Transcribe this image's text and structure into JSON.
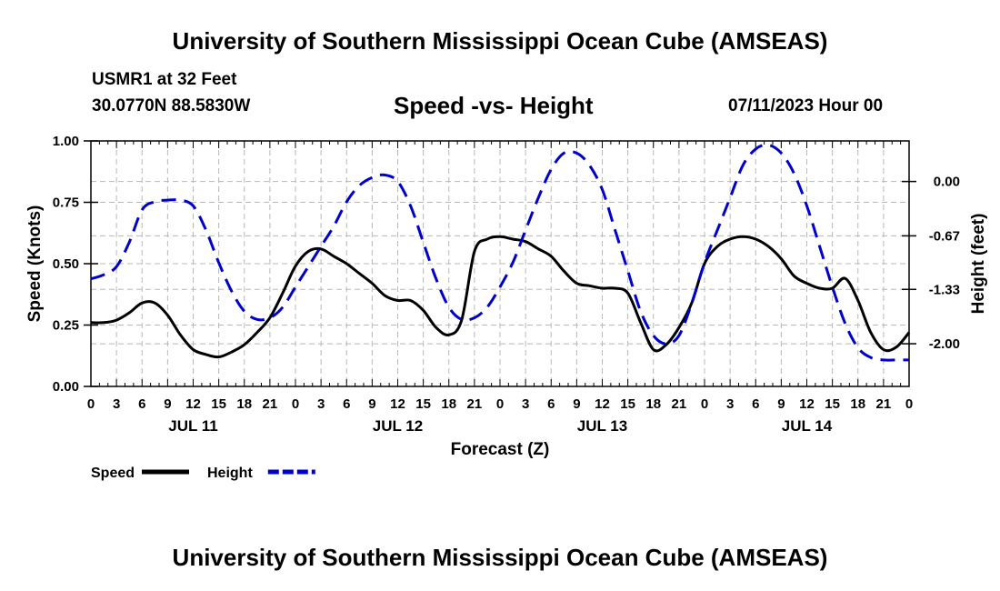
{
  "header": {
    "title": "University of Southern Mississippi Ocean Cube (AMSEAS)",
    "station": "USMR1 at 32 Feet",
    "coords": "30.0770N  88.5830W",
    "subtitle": "Speed -vs- Height",
    "run_time": "07/11/2023 Hour 00"
  },
  "footer": {
    "title": "University of Southern Mississippi Ocean Cube (AMSEAS)"
  },
  "chart_data": {
    "type": "line",
    "title": "Speed -vs- Height",
    "xlabel": "Forecast (Z)",
    "ylabel": "Speed (Knots)",
    "y2label": "Height (feet)",
    "xlim": [
      0,
      96
    ],
    "ylim": [
      0,
      1
    ],
    "y2lim": [
      -2.526,
      0.5
    ],
    "grid": true,
    "x_tick_step_hours": 3,
    "x_tick_labels": [
      "0",
      "3",
      "6",
      "9",
      "12",
      "15",
      "18",
      "21",
      "0",
      "3",
      "6",
      "9",
      "12",
      "15",
      "18",
      "21",
      "0",
      "3",
      "6",
      "9",
      "12",
      "15",
      "18",
      "21",
      "0",
      "3",
      "6",
      "9",
      "12",
      "15",
      "18",
      "21",
      "0"
    ],
    "day_labels": [
      {
        "hour": 12,
        "label": "JUL 11"
      },
      {
        "hour": 36,
        "label": "JUL 12"
      },
      {
        "hour": 60,
        "label": "JUL 13"
      },
      {
        "hour": 84,
        "label": "JUL 14"
      }
    ],
    "y_ticks": [
      0.0,
      0.25,
      0.5,
      0.75,
      1.0
    ],
    "y_tick_labels": [
      "0.00",
      "0.25",
      "0.50",
      "0.75",
      "1.00"
    ],
    "y2_ticks": [
      -2.0,
      -1.33,
      -0.67,
      0.0
    ],
    "y2_tick_labels": [
      "-2.00",
      "-1.33",
      "-0.67",
      "0.00"
    ],
    "series": [
      {
        "name": "Speed",
        "axis": "left",
        "color": "#000000",
        "dash": "solid",
        "x": [
          0,
          1.5,
          3,
          4.5,
          6,
          7.5,
          9,
          10.5,
          12,
          13.5,
          15,
          16.5,
          18,
          19.5,
          21,
          22.5,
          24,
          25.5,
          27,
          28.5,
          30,
          31.5,
          33,
          34.5,
          36,
          37.5,
          39,
          40.5,
          42,
          43.5,
          45,
          46.5,
          48,
          49.5,
          51,
          52.5,
          54,
          55.5,
          57,
          58.5,
          60,
          61.5,
          63,
          64.5,
          66,
          67.5,
          69,
          70.5,
          72,
          73.5,
          75,
          76.5,
          78,
          79.5,
          81,
          82.5,
          84,
          85.5,
          87,
          88.5,
          90,
          91.5,
          93,
          94.5,
          96
        ],
        "y": [
          0.26,
          0.26,
          0.27,
          0.3,
          0.34,
          0.34,
          0.29,
          0.21,
          0.15,
          0.13,
          0.12,
          0.14,
          0.17,
          0.22,
          0.28,
          0.38,
          0.49,
          0.55,
          0.56,
          0.53,
          0.5,
          0.46,
          0.42,
          0.37,
          0.35,
          0.35,
          0.31,
          0.24,
          0.21,
          0.27,
          0.55,
          0.6,
          0.61,
          0.6,
          0.59,
          0.56,
          0.53,
          0.47,
          0.42,
          0.41,
          0.4,
          0.4,
          0.38,
          0.26,
          0.15,
          0.17,
          0.24,
          0.34,
          0.5,
          0.57,
          0.6,
          0.61,
          0.6,
          0.57,
          0.52,
          0.45,
          0.42,
          0.4,
          0.4,
          0.44,
          0.35,
          0.22,
          0.15,
          0.16,
          0.22
        ]
      },
      {
        "name": "Height",
        "axis": "right",
        "color": "#0000cc",
        "dash": "dashed",
        "x": [
          0,
          1.5,
          3,
          4.5,
          6,
          7.5,
          9,
          10.5,
          12,
          13.5,
          15,
          16.5,
          18,
          19.5,
          21,
          22.5,
          24,
          25.5,
          27,
          28.5,
          30,
          31.5,
          33,
          34.5,
          36,
          37.5,
          39,
          40.5,
          42,
          43.5,
          45,
          46.5,
          48,
          49.5,
          51,
          52.5,
          54,
          55.5,
          57,
          58.5,
          60,
          61.5,
          63,
          64.5,
          66,
          67.5,
          69,
          70.5,
          72,
          73.5,
          75,
          76.5,
          78,
          79.5,
          81,
          82.5,
          84,
          85.5,
          87,
          88.5,
          90,
          91.5,
          93,
          94.5,
          96
        ],
        "y": [
          -1.2,
          -1.15,
          -1.05,
          -0.75,
          -0.35,
          -0.25,
          -0.23,
          -0.23,
          -0.3,
          -0.6,
          -1.0,
          -1.35,
          -1.6,
          -1.7,
          -1.68,
          -1.55,
          -1.3,
          -1.05,
          -0.8,
          -0.55,
          -0.25,
          -0.05,
          0.05,
          0.08,
          0.0,
          -0.3,
          -0.75,
          -1.2,
          -1.55,
          -1.7,
          -1.68,
          -1.55,
          -1.3,
          -1.0,
          -0.6,
          -0.2,
          0.15,
          0.35,
          0.35,
          0.2,
          -0.1,
          -0.6,
          -1.1,
          -1.6,
          -1.9,
          -2.0,
          -1.9,
          -1.5,
          -1.0,
          -0.6,
          -0.2,
          0.2,
          0.4,
          0.45,
          0.35,
          0.1,
          -0.3,
          -0.8,
          -1.3,
          -1.75,
          -2.05,
          -2.17,
          -2.2,
          -2.2,
          -2.2
        ]
      }
    ],
    "legend": [
      {
        "label": "Speed",
        "color": "#000000",
        "dash": "solid"
      },
      {
        "label": "Height",
        "color": "#0000cc",
        "dash": "dashed"
      }
    ],
    "legend_position": "bottom-left"
  }
}
